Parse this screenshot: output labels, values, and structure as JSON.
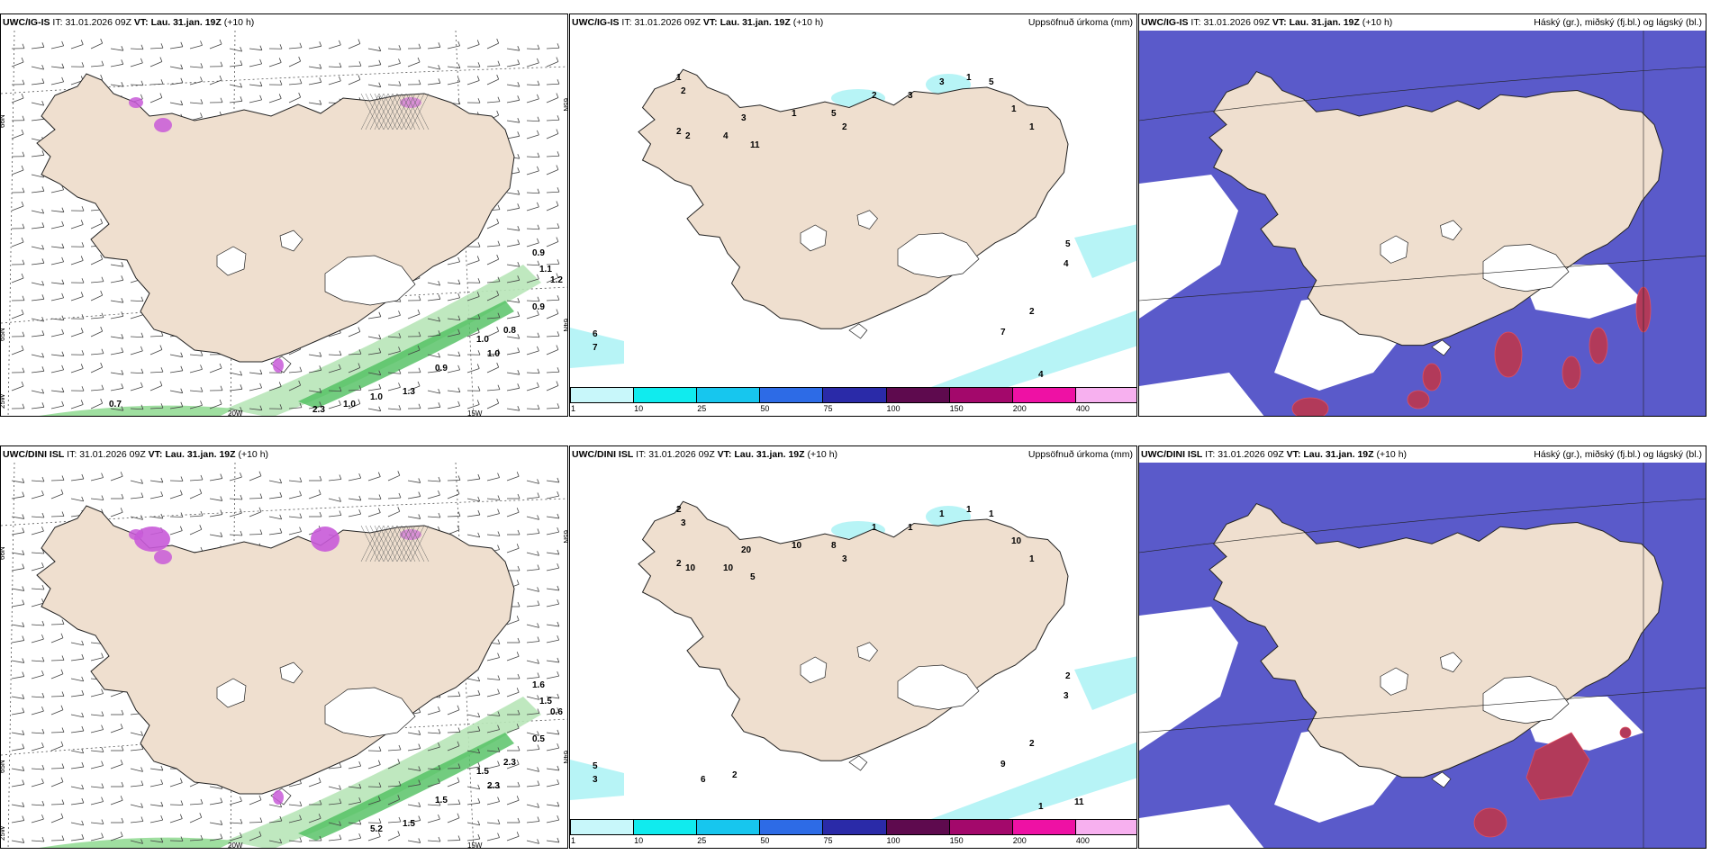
{
  "rows": [
    {
      "model": "UWC/IG-IS",
      "it_label": "IT:",
      "it": "31.01.2026 09Z",
      "vt_label": "VT:",
      "vt": "Lau. 31.jan. 19Z",
      "lead": "(+10 h)",
      "wind_labels": [
        "0.9",
        "1.1",
        "1.2",
        "0.9",
        "0.8",
        "1.0",
        "1.0",
        "0.9",
        "1.3",
        "1.0",
        "1.0",
        "2.3",
        "0.7"
      ],
      "precip_labels": [
        "1",
        "2",
        "2",
        "2",
        "4",
        "11",
        "3",
        "1",
        "5",
        "2",
        "2",
        "3",
        "3",
        "1",
        "5",
        "1",
        "1",
        "5",
        "4",
        "2",
        "7",
        "6",
        "7",
        "3",
        "4",
        "4"
      ]
    },
    {
      "model": "UWC/DINI ISL",
      "it_label": "IT:",
      "it": "31.01.2026 09Z",
      "vt_label": "VT:",
      "vt": "Lau. 31.jan. 19Z",
      "lead": "(+10 h)",
      "wind_labels": [
        "1.6",
        "1.5",
        "0.6",
        "0.5",
        "2.3",
        "1.5",
        "2.3",
        "1.5",
        "1.5",
        "5.2"
      ],
      "precip_labels": [
        "2",
        "3",
        "2",
        "10",
        "10",
        "5",
        "20",
        "10",
        "8",
        "3",
        "1",
        "1",
        "1",
        "1",
        "1",
        "10",
        "1",
        "2",
        "3",
        "2",
        "9",
        "5",
        "3",
        "3",
        "2",
        "1",
        "11",
        "3",
        "6",
        "2"
      ]
    }
  ],
  "center_title": "Uppsöfnuð úrkoma (mm)",
  "right_title": "Háský (gr.), miðský (fj.bl.) og lágský (bl.)",
  "legend": {
    "colors": [
      "#c8f7fa",
      "#10ebee",
      "#17c6ee",
      "#2d6be6",
      "#2a2aa8",
      "#5e0a4e",
      "#a3086b",
      "#ee11a4",
      "#f7b0ef"
    ],
    "labels": [
      "1",
      "10",
      "25",
      "50",
      "75",
      "100",
      "150",
      "200",
      "400"
    ]
  },
  "axis_labels": {
    "lat_top": "66N",
    "lat_mid": "65N",
    "lat_bottom": "64N",
    "lat_25w": "25W",
    "lon_20w": "20W",
    "lon_15w": "15W",
    "lat_right_65": "65N",
    "lat_right_64": "64N"
  },
  "colors": {
    "land": "#efdfcf",
    "sea": "#ffffff",
    "precip_light": "#b7f4f6",
    "wind_green": "#4fbf5f",
    "high_cloud": "#ffffff",
    "mid_cloud": "#5a5aca",
    "low_cloud": "#b23a5a",
    "purple": "#c85ad8"
  }
}
